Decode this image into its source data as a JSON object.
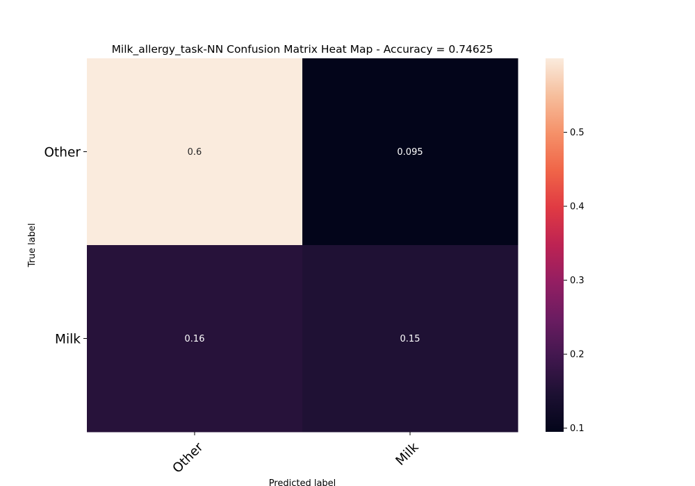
{
  "chart_data": {
    "type": "heatmap",
    "title": "Milk_allergy_task-NN Confusion Matrix Heat Map - Accuracy = 0.74625",
    "xlabel": "Predicted label",
    "ylabel": "True label",
    "x_categories": [
      "Other",
      "Milk"
    ],
    "y_categories": [
      "Other",
      "Milk"
    ],
    "values": [
      [
        0.6,
        0.095
      ],
      [
        0.16,
        0.15
      ]
    ],
    "cell_labels": [
      [
        "0.6",
        "0.095"
      ],
      [
        "0.16",
        "0.15"
      ]
    ],
    "colorbar": {
      "range": [
        0.095,
        0.6
      ],
      "ticks": [
        0.1,
        0.2,
        0.3,
        0.4,
        0.5
      ],
      "tick_labels": [
        "0.1",
        "0.2",
        "0.3",
        "0.4",
        "0.5"
      ]
    },
    "colormap": "rocket"
  }
}
